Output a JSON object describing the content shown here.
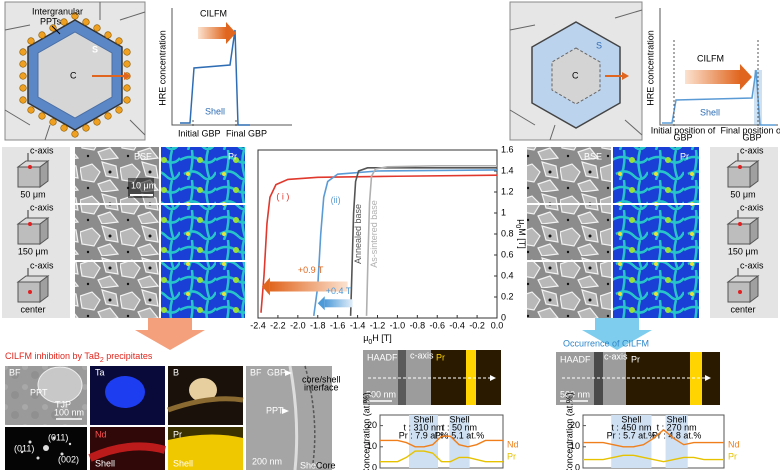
{
  "top_left": {
    "ppt_label": [
      "Intergranular",
      "PPTs"
    ],
    "shell": "S",
    "core": "C"
  },
  "top_left_plot": {
    "arrow": "CILFM",
    "ylabel": "HRE concentration",
    "shell": "Shell",
    "x_initial": "Initial GBP",
    "x_final": "Final GBP"
  },
  "top_right": {
    "shell": "S",
    "core": "C"
  },
  "top_right_plot": {
    "arrow": "CILFM",
    "ylabel": "HRE concentration",
    "shell": "Shell",
    "x_initial": [
      "Initial position of",
      "GBP"
    ],
    "x_final": [
      "Final position of",
      "GBP"
    ]
  },
  "left_samples": {
    "axis": "c-axis",
    "depths": [
      "50 μm",
      "150 μm",
      "center"
    ]
  },
  "left_maps": {
    "bse": "BSE",
    "pr": "Pr",
    "scale": "10 μm"
  },
  "right_samples": {
    "axis": "c-axis",
    "depths": [
      "50 μm",
      "150 μm",
      "center"
    ]
  },
  "right_maps": {
    "bse": "BSE",
    "pr": "Pr"
  },
  "bottom_left": {
    "title": [
      "CILFM inhibition by TaB",
      "2",
      " precipitates"
    ],
    "bf1": {
      "label": "BF",
      "ppt": "PPT",
      "tjp": "TJP",
      "scale": "100 nm"
    },
    "ta": "Ta",
    "b": "B",
    "diffraction": [
      "(011)",
      "(011)",
      "(002)"
    ],
    "nd": {
      "label": "Nd",
      "shell": "Shell"
    },
    "pr": {
      "label": "Pr",
      "shell": "Shell"
    },
    "bf2": {
      "label": "BF",
      "gbp": "GBP",
      "ppt": "PPT",
      "interface": [
        "core/shell",
        "interface"
      ],
      "scale": "200 nm",
      "shell": "Shell",
      "core": "Core"
    }
  },
  "bottom_mid": {
    "haadf": "HAADF",
    "pr": "Pr",
    "c_axis": "c-axis",
    "scale": "500 nm"
  },
  "bottom_right": {
    "title": "Occurrence of CILFM",
    "haadf": "HAADF",
    "pr": "Pr",
    "c_axis": "c-axis",
    "scale": "500 nm"
  },
  "chart_data": [
    {
      "type": "line",
      "xlabel": [
        "μ",
        "0",
        "H [T]"
      ],
      "ylabel": [
        "μ",
        "0",
        "M [T]"
      ],
      "xlim": [
        -2.4,
        0.0
      ],
      "xticks": [
        -2.4,
        -2.2,
        {
          "value": -2,
          "label": "-2.0"
        },
        -1.8,
        -1.6,
        -1.4,
        -1.2,
        {
          "value": -1,
          "label": "-1.0"
        },
        -0.8,
        -0.6,
        -0.4,
        -0.2,
        {
          "value": 0,
          "label": "0.0"
        }
      ],
      "ylim": [
        0,
        1.6
      ],
      "yticks": [
        0,
        0.2,
        0.4,
        0.6,
        0.8,
        1,
        1.2,
        1.4,
        1.6
      ],
      "series": [
        {
          "name": "( i )",
          "color": "#e0382c",
          "x": [
            -2.37,
            -2.34,
            -2.31,
            -2.28,
            -2.22,
            -2.1,
            -1.8,
            -1.0,
            0.0
          ],
          "values": [
            0.05,
            0.4,
            0.9,
            1.15,
            1.27,
            1.32,
            1.34,
            1.35,
            1.36
          ]
        },
        {
          "name": "(ii)",
          "color": "#5b9bd5",
          "x": [
            -1.84,
            -1.8,
            -1.77,
            -1.74,
            -1.7,
            -1.6,
            -1.2,
            0.0
          ],
          "values": [
            0.02,
            0.3,
            0.8,
            1.15,
            1.3,
            1.37,
            1.4,
            1.41
          ]
        },
        {
          "name": "Annealed base",
          "color": "#555555",
          "x": [
            -1.47,
            -1.455,
            -1.44,
            -1.42,
            -1.39,
            -1.3,
            -0.8,
            0.0
          ],
          "values": [
            0.02,
            0.5,
            1.0,
            1.3,
            1.4,
            1.43,
            1.43,
            1.43
          ]
        },
        {
          "name": "As-sintered base",
          "color": "#b0b0b0",
          "x": [
            -1.31,
            -1.295,
            -1.28,
            -1.26,
            -1.22,
            -1.1,
            -0.6,
            0.0
          ],
          "values": [
            0.02,
            0.6,
            1.1,
            1.35,
            1.42,
            1.44,
            1.45,
            1.45
          ]
        }
      ],
      "annotations": [
        "+0.9 T",
        "+0.4 T"
      ]
    },
    {
      "type": "line",
      "ylabel": "Concentration (at.%)",
      "ylim": [
        0,
        25
      ],
      "yticks": [
        0,
        10,
        20
      ],
      "series": [
        {
          "name": "Nd",
          "color": "#f07f1b",
          "values": [
            13,
            13,
            13,
            12,
            10,
            10,
            11,
            15,
            15,
            11,
            10,
            11,
            13,
            13,
            13
          ]
        },
        {
          "name": "Pr",
          "color": "#e6c200",
          "values": [
            3,
            3,
            3,
            5,
            8,
            8,
            7,
            3,
            3,
            5,
            5,
            4,
            3,
            3,
            3
          ]
        }
      ],
      "annotations": [
        [
          "Shell",
          "t : 310 nm",
          "Pr : 7.9 at.%"
        ],
        [
          "Shell",
          "t : 50 nm",
          "Pr : 5.1 at.%"
        ]
      ]
    },
    {
      "type": "line",
      "ylabel": "Concentration (at.%)",
      "ylim": [
        0,
        25
      ],
      "yticks": [
        0,
        10,
        20
      ],
      "series": [
        {
          "name": "Nd",
          "color": "#f07f1b",
          "values": [
            12,
            12,
            12,
            11,
            10,
            10,
            11,
            14,
            18,
            14,
            11,
            12,
            12,
            12,
            12
          ]
        },
        {
          "name": "Pr",
          "color": "#e6c200",
          "values": [
            4,
            4,
            4,
            5,
            6,
            6,
            5,
            4,
            3,
            4,
            5,
            5,
            4,
            4,
            4
          ]
        }
      ],
      "annotations": [
        [
          "Shell",
          "t : 450 nm",
          "Pr : 5.7 at.%"
        ],
        [
          "Shell",
          "t : 270 nm",
          "Pr : 4.8 at.%"
        ]
      ]
    }
  ]
}
